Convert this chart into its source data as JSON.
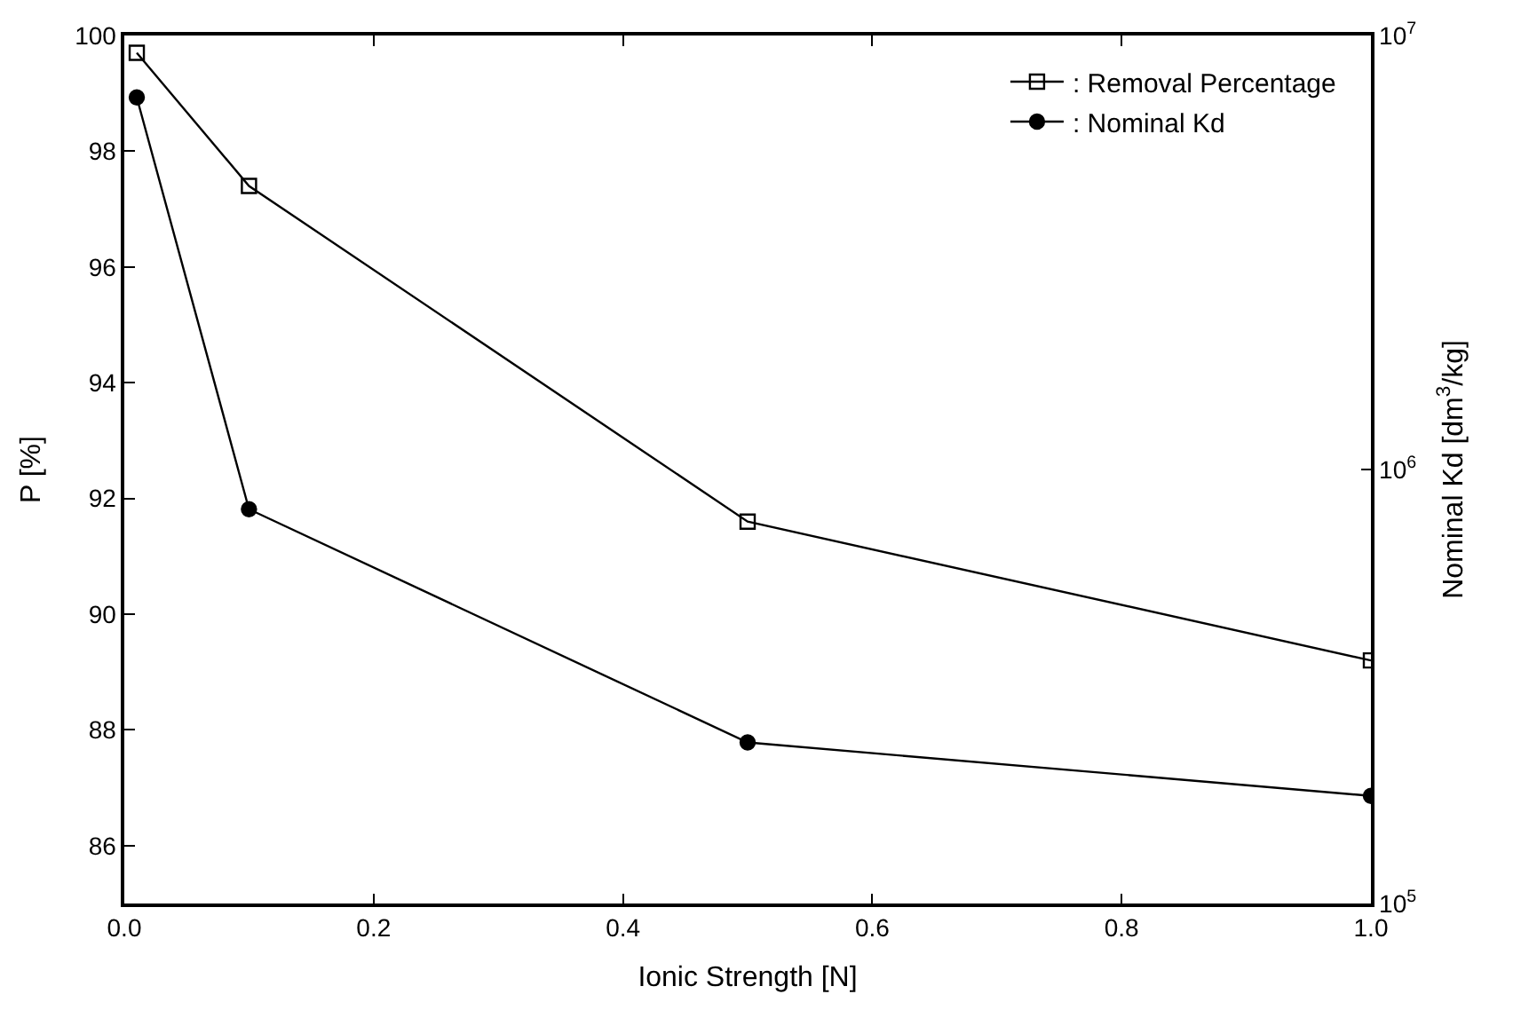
{
  "chart_data": {
    "type": "line",
    "xlabel": "Ionic Strength [N]",
    "ylabel": "P [%]",
    "y2label": "Nominal Kd [dm$^{3}$/kg]",
    "x": [
      0.01,
      0.1,
      0.5,
      1.0
    ],
    "series": [
      {
        "name": ": Removal Percentage",
        "color": "#000000",
        "marker": "square",
        "values": [
          99.7,
          97.4,
          91.6,
          89.2
        ]
      },
      {
        "name": ": Nominal Kd",
        "color": "#000000",
        "marker": "circle",
        "axis": "y2",
        "values": [
          7200000,
          810000,
          235000,
          177000
        ]
      }
    ],
    "xlim": [
      0,
      1.0
    ],
    "xticks": [
      {
        "value": 0,
        "label": "0.0"
      },
      {
        "value": 0.2,
        "label": "0.2"
      },
      {
        "value": 0.4,
        "label": "0.4"
      },
      {
        "value": 0.6,
        "label": "0.6"
      },
      {
        "value": 0.8,
        "label": "0.8"
      },
      {
        "value": 1.0,
        "label": "1.0"
      }
    ],
    "ylim": [
      85,
      100
    ],
    "yticks": [
      86,
      88,
      90,
      92,
      94,
      96,
      98,
      100
    ],
    "y2lim": [
      100000,
      10000000
    ],
    "y2ticks": [
      {
        "value": 100000,
        "label": "10$^{5}$"
      },
      {
        "value": 1000000,
        "label": "10$^{6}$"
      },
      {
        "value": 10000000,
        "label": "10$^{7}$"
      }
    ],
    "log": "y2",
    "legend": "top right",
    "line_style": "solid",
    "grid": false
  }
}
